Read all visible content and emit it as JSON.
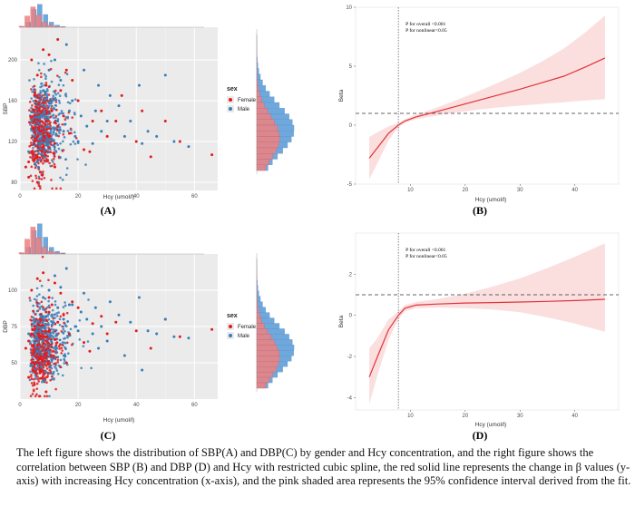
{
  "colors": {
    "female": "#e41a1c",
    "male": "#377eb8",
    "female_hist": "#f08080",
    "male_hist": "#6fa8dc",
    "panel_bg": "#ebebeb",
    "spline": "#e0333a",
    "ci_band": "#fbdcdc"
  },
  "caption": "The left figure shows the distribution of SBP(A) and DBP(C) by gender and Hcy concentration, and the right figure shows the correlation between SBP (B) and DBP (D) and Hcy with restricted cubic spline, the red solid line represents the change in β values (y-axis) with increasing Hcy concentration (x-axis), and the pink shaded area represents the 95% confidence interval derived from the fit.",
  "chart_data": [
    {
      "id": "A",
      "type": "scatter",
      "panel_label": "(A)",
      "xlabel": "Hcy (umol/l)",
      "ylabel": "SBP",
      "xlim": [
        0,
        68
      ],
      "ylim": [
        72,
        232
      ],
      "xticks": [
        0,
        20,
        40,
        60
      ],
      "yticks": [
        80,
        120,
        160,
        200
      ],
      "legend": {
        "title": "sex",
        "position": "right",
        "entries": [
          "Female",
          "Male"
        ]
      },
      "series": [
        {
          "name": "Female",
          "color": "#e41a1c",
          "points": [
            [
              2,
              95
            ],
            [
              3,
              100
            ],
            [
              4,
              110
            ],
            [
              5,
              120
            ],
            [
              6,
              105
            ],
            [
              7,
              130
            ],
            [
              8,
              115
            ],
            [
              9,
              140
            ],
            [
              10,
              125
            ],
            [
              11,
              150
            ],
            [
              12,
              118
            ],
            [
              13,
              135
            ],
            [
              15,
              145
            ],
            [
              17,
              128
            ],
            [
              20,
              160
            ],
            [
              22,
              112
            ],
            [
              25,
              140
            ],
            [
              28,
              150
            ],
            [
              30,
              125
            ],
            [
              33,
              140
            ],
            [
              35,
              165
            ],
            [
              40,
              120
            ],
            [
              42,
              150
            ],
            [
              45,
              105
            ],
            [
              50,
              140
            ],
            [
              55,
              120
            ],
            [
              66,
              107
            ],
            [
              4,
              200
            ],
            [
              6,
              185
            ],
            [
              8,
              210
            ],
            [
              10,
              205
            ],
            [
              13,
              220
            ],
            [
              16,
              190
            ],
            [
              9,
              175
            ],
            [
              5,
              165
            ],
            [
              7,
              90
            ],
            [
              3,
              85
            ],
            [
              12,
              95
            ],
            [
              6,
              80
            ],
            [
              18,
              180
            ],
            [
              24,
              110
            ],
            [
              14,
              170
            ]
          ]
        },
        {
          "name": "Male",
          "color": "#377eb8",
          "points": [
            [
              3,
              110
            ],
            [
              5,
              125
            ],
            [
              7,
              118
            ],
            [
              9,
              135
            ],
            [
              11,
              122
            ],
            [
              13,
              140
            ],
            [
              15,
              130
            ],
            [
              17,
              150
            ],
            [
              19,
              125
            ],
            [
              21,
              145
            ],
            [
              23,
              135
            ],
            [
              26,
              150
            ],
            [
              28,
              130
            ],
            [
              31,
              165
            ],
            [
              34,
              155
            ],
            [
              38,
              140
            ],
            [
              41,
              175
            ],
            [
              44,
              130
            ],
            [
              47,
              125
            ],
            [
              50,
              185
            ],
            [
              53,
              120
            ],
            [
              58,
              115
            ],
            [
              10,
              190
            ],
            [
              12,
              200
            ],
            [
              8,
              170
            ],
            [
              14,
              180
            ],
            [
              16,
              215
            ],
            [
              20,
              120
            ],
            [
              25,
              118
            ],
            [
              6,
              100
            ],
            [
              18,
              160
            ],
            [
              22,
              190
            ],
            [
              30,
              140
            ],
            [
              36,
              125
            ],
            [
              42,
              118
            ],
            [
              11,
              160
            ],
            [
              4,
              140
            ],
            [
              27,
              175
            ]
          ]
        }
      ]
    },
    {
      "id": "B",
      "type": "line",
      "panel_label": "(B)",
      "xlabel": "Hcy (umol/l)",
      "ylabel": "Beta",
      "xlim": [
        0,
        48
      ],
      "ylim": [
        -5,
        10
      ],
      "xticks": [
        10,
        20,
        30,
        40
      ],
      "yticks": [
        -5,
        0,
        5,
        10
      ],
      "reference_hline": 1,
      "reference_vline": 7.8,
      "annotations": [
        "P for overall <0.001",
        "P for nonlinear<0.05"
      ],
      "series": [
        {
          "name": "Beta",
          "x": [
            2.5,
            4,
            6,
            7.8,
            9,
            11,
            14,
            18,
            22,
            26,
            30,
            34,
            38,
            42,
            45.5
          ],
          "y": [
            -2.8,
            -1.9,
            -0.7,
            0.0,
            0.35,
            0.7,
            1.05,
            1.55,
            2.05,
            2.55,
            3.05,
            3.6,
            4.15,
            4.95,
            5.7
          ]
        },
        {
          "name": "CI lower",
          "x": [
            2.5,
            4,
            6,
            7.8,
            9,
            11,
            14,
            18,
            22,
            26,
            30,
            34,
            38,
            42,
            45.5
          ],
          "y": [
            -4.6,
            -3.2,
            -1.3,
            -0.2,
            0.2,
            0.5,
            0.75,
            1.05,
            1.3,
            1.5,
            1.65,
            1.8,
            1.95,
            2.1,
            2.2
          ]
        },
        {
          "name": "CI upper",
          "x": [
            2.5,
            4,
            6,
            7.8,
            9,
            11,
            14,
            18,
            22,
            26,
            30,
            34,
            38,
            42,
            45.5
          ],
          "y": [
            -1.0,
            -0.6,
            -0.1,
            0.2,
            0.5,
            0.9,
            1.35,
            2.05,
            2.8,
            3.6,
            4.45,
            5.4,
            6.5,
            7.9,
            9.3
          ]
        }
      ]
    },
    {
      "id": "C",
      "type": "scatter",
      "panel_label": "(C)",
      "xlabel": "Hcy (umol/l)",
      "ylabel": "DBP",
      "xlim": [
        0,
        68
      ],
      "ylim": [
        25,
        125
      ],
      "xticks": [
        0,
        20,
        40,
        60
      ],
      "yticks": [
        50,
        75,
        100
      ],
      "legend": {
        "title": "sex",
        "position": "right",
        "entries": [
          "Female",
          "Male"
        ]
      },
      "series": [
        {
          "name": "Female",
          "color": "#e41a1c",
          "points": [
            [
              2,
              60
            ],
            [
              3,
              65
            ],
            [
              4,
              70
            ],
            [
              5,
              75
            ],
            [
              6,
              62
            ],
            [
              7,
              80
            ],
            [
              8,
              68
            ],
            [
              9,
              85
            ],
            [
              10,
              72
            ],
            [
              11,
              90
            ],
            [
              12,
              66
            ],
            [
              13,
              78
            ],
            [
              15,
              83
            ],
            [
              17,
              70
            ],
            [
              20,
              88
            ],
            [
              22,
              64
            ],
            [
              25,
              77
            ],
            [
              28,
              82
            ],
            [
              30,
              70
            ],
            [
              33,
              78
            ],
            [
              40,
              72
            ],
            [
              45,
              60
            ],
            [
              50,
              80
            ],
            [
              55,
              68
            ],
            [
              66,
              73
            ],
            [
              4,
              100
            ],
            [
              6,
              108
            ],
            [
              8,
              112
            ],
            [
              10,
              95
            ],
            [
              12,
              105
            ],
            [
              3,
              40
            ],
            [
              5,
              35
            ],
            [
              7,
              45
            ],
            [
              9,
              30
            ],
            [
              14,
              98
            ],
            [
              18,
              92
            ],
            [
              24,
              58
            ],
            [
              16,
              50
            ]
          ]
        },
        {
          "name": "Male",
          "color": "#377eb8",
          "points": [
            [
              3,
              70
            ],
            [
              5,
              78
            ],
            [
              7,
              72
            ],
            [
              9,
              82
            ],
            [
              11,
              76
            ],
            [
              13,
              88
            ],
            [
              15,
              80
            ],
            [
              17,
              90
            ],
            [
              19,
              75
            ],
            [
              21,
              85
            ],
            [
              23,
              80
            ],
            [
              26,
              88
            ],
            [
              28,
              75
            ],
            [
              31,
              92
            ],
            [
              34,
              83
            ],
            [
              38,
              78
            ],
            [
              41,
              95
            ],
            [
              44,
              72
            ],
            [
              47,
              70
            ],
            [
              50,
              80
            ],
            [
              53,
              68
            ],
            [
              58,
              67
            ],
            [
              10,
              100
            ],
            [
              12,
              110
            ],
            [
              8,
              95
            ],
            [
              14,
              102
            ],
            [
              16,
              115
            ],
            [
              20,
              72
            ],
            [
              25,
              70
            ],
            [
              6,
              58
            ],
            [
              18,
              90
            ],
            [
              22,
              98
            ],
            [
              30,
              65
            ],
            [
              36,
              55
            ],
            [
              42,
              45
            ],
            [
              11,
              52
            ],
            [
              4,
              48
            ],
            [
              27,
              60
            ]
          ]
        }
      ]
    },
    {
      "id": "D",
      "type": "line",
      "panel_label": "(D)",
      "xlabel": "Hcy (umol/l)",
      "ylabel": "Beta",
      "xlim": [
        0,
        48
      ],
      "ylim": [
        -4.6,
        4
      ],
      "xticks": [
        10,
        20,
        30,
        40
      ],
      "yticks": [
        -4,
        -2,
        0,
        2
      ],
      "reference_hline": 1,
      "reference_vline": 7.8,
      "annotations": [
        "P for overall <0.001",
        "P for nonlinear<0.05"
      ],
      "series": [
        {
          "name": "Beta",
          "x": [
            2.5,
            4,
            6,
            7.8,
            9,
            11,
            15,
            20,
            25,
            30,
            35,
            40,
            45.5
          ],
          "y": [
            -3.0,
            -2.0,
            -0.7,
            0.0,
            0.35,
            0.5,
            0.55,
            0.6,
            0.62,
            0.65,
            0.68,
            0.72,
            0.78
          ]
        },
        {
          "name": "CI lower",
          "x": [
            2.5,
            4,
            6,
            7.8,
            9,
            11,
            15,
            20,
            25,
            30,
            35,
            40,
            45.5
          ],
          "y": [
            -4.3,
            -2.9,
            -1.2,
            -0.2,
            0.2,
            0.35,
            0.38,
            0.35,
            0.28,
            0.15,
            -0.1,
            -0.4,
            -0.8
          ]
        },
        {
          "name": "CI upper",
          "x": [
            2.5,
            4,
            6,
            7.8,
            9,
            11,
            15,
            20,
            25,
            30,
            35,
            40,
            45.5
          ],
          "y": [
            -1.6,
            -1.1,
            -0.2,
            0.2,
            0.5,
            0.65,
            0.8,
            1.05,
            1.4,
            1.8,
            2.3,
            2.85,
            3.5
          ]
        }
      ]
    }
  ]
}
